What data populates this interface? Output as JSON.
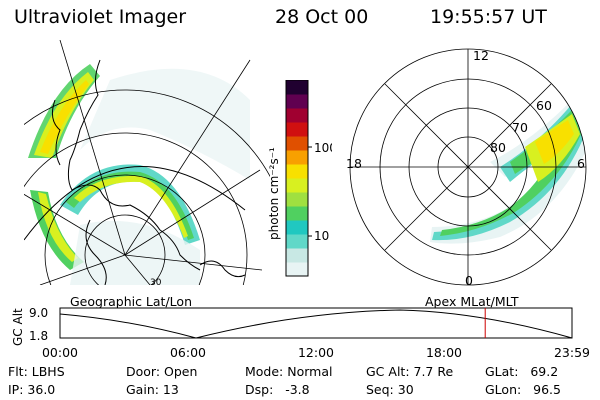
{
  "header": {
    "title": "Ultraviolet Imager",
    "date": "28 Oct 00",
    "time": "19:55:57 UT"
  },
  "colorbar": {
    "unit_label": "photon cm⁻²s⁻¹",
    "ticks": [
      "100",
      "10"
    ],
    "colors": [
      "#e8f4f4",
      "#c8e8e4",
      "#60d8c8",
      "#20c8c0",
      "#50d060",
      "#a0e040",
      "#d8f020",
      "#f8e000",
      "#f8a000",
      "#e05000",
      "#d01010",
      "#a00030",
      "#600050",
      "#200030"
    ]
  },
  "left_map": {
    "title": "Geographic Lat/Lon",
    "marker": "30"
  },
  "right_map": {
    "title": "Apex  MLat/MLT",
    "mlt_labels": {
      "top": "12",
      "left": "18",
      "right": "6",
      "bottom": "0"
    },
    "lat_labels": [
      "60",
      "70",
      "80"
    ]
  },
  "gc_plot": {
    "ylabel": "GC Alt",
    "yticks": [
      "9.0",
      "1.8"
    ],
    "xticks": [
      "00:00",
      "06:00",
      "12:00",
      "18:00",
      "23:59"
    ],
    "current_time_hours": 19.93,
    "marker_color": "#cc0000"
  },
  "status": {
    "flt": "Flt: LBHS",
    "ip": "IP: 36.0",
    "door": "Door: Open",
    "gain": "Gain: 13",
    "mode": "Mode: Normal",
    "dsp": "Dsp:   -3.8",
    "gcalt": "GC Alt: 7.7 Re",
    "seq": "Seq: 30",
    "glat": "GLat:   69.2",
    "glon": "GLon:   96.5"
  }
}
